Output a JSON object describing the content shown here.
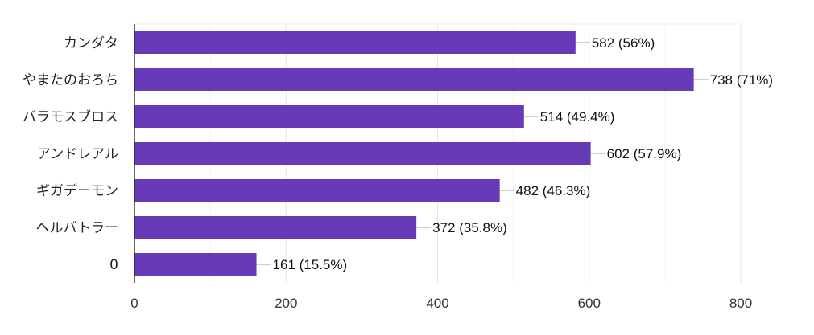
{
  "chart_data": {
    "type": "bar",
    "orientation": "horizontal",
    "categories": [
      "カンダタ",
      "やまたのおろち",
      "バラモスブロス",
      "アンドレアル",
      "ギガデーモン",
      "ヘルバトラー",
      "0"
    ],
    "values": [
      582,
      738,
      514,
      602,
      482,
      372,
      161
    ],
    "value_labels": [
      "582 (56%)",
      "738 (71%)",
      "514 (49.4%)",
      "602 (57.9%)",
      "482 (46.3%)",
      "372 (35.8%)",
      "161 (15.5%)"
    ],
    "xticks": [
      "0",
      "200",
      "400",
      "600",
      "800"
    ],
    "xlim": [
      0,
      800
    ],
    "grid": true,
    "legend": "none",
    "bar_color": "#673ab7"
  }
}
